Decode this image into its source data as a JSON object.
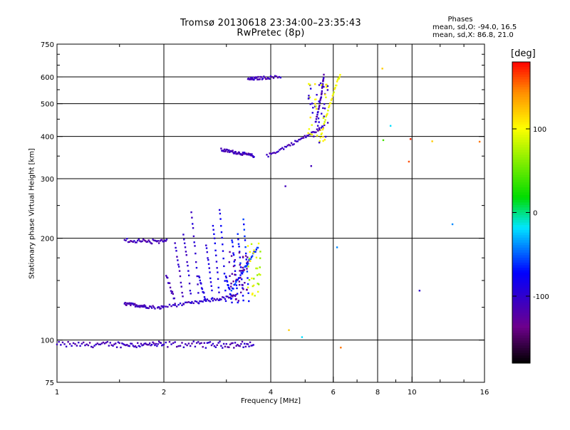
{
  "title": "Tromsø 20130618 23:34:00–23:35:43",
  "subtitle": "RwPretec (8p)",
  "phases": {
    "heading": "Phases",
    "o_line": "mean, sd,O: -94.0, 16.5",
    "x_line": "mean, sd,X: 86.8, 21.0"
  },
  "colorbar": {
    "unit": "deg",
    "tick_labels": [
      "100",
      "0",
      "-100"
    ],
    "ticks": [
      100,
      0,
      -100
    ],
    "range": [
      -180,
      180
    ],
    "colormap": "rainbow (black-purple-blue-cyan-green-yellow-red)"
  },
  "chart_data": {
    "type": "scatter",
    "title": "Tromsø 20130618 23:34:00–23:35:43",
    "subtitle": "RwPretec (8p)",
    "xlabel": "Frequency [MHz]",
    "ylabel": "Stationary phase Virtual Height [km]",
    "x_scale": "log",
    "y_scale": "log",
    "xlim": [
      1,
      16
    ],
    "ylim": [
      75,
      750
    ],
    "x_ticks": [
      1,
      2,
      4,
      6,
      8,
      10,
      16
    ],
    "x_tick_labels": [
      "1",
      "2",
      "4",
      "6",
      "8",
      "10",
      "16"
    ],
    "y_ticks": [
      75,
      100,
      200,
      300,
      400,
      500,
      600,
      750
    ],
    "y_tick_labels": [
      "75",
      "100",
      "200",
      "300",
      "400",
      "500",
      "600",
      "750"
    ],
    "x_gridlines": [
      2,
      4,
      6,
      8,
      10
    ],
    "y_gridlines": [
      100,
      200,
      300,
      400,
      500,
      600
    ],
    "series": [
      {
        "color_by": "phase (deg)",
        "traces": [
          {
            "x": [
              1.0,
              1.1,
              1.2,
              1.3,
              1.4,
              1.5,
              1.6,
              1.7,
              1.8,
              1.9,
              2.0,
              2.2,
              2.4,
              2.6,
              2.8,
              3.0,
              3.2,
              3.4,
              3.6
            ],
            "y": 97,
            "jitter": 1.5,
            "phase": -110
          },
          {
            "x": [
              1.55,
              1.65,
              1.75,
              1.85,
              1.95,
              2.05
            ],
            "y": 196,
            "jitter": 1,
            "phase": -110
          },
          {
            "x": [
              1.92,
              2.0,
              2.2,
              2.4,
              2.6,
              2.8,
              3.0,
              3.2
            ],
            "y_start": 124,
            "y_end": 135,
            "phase": -105
          },
          {
            "x": [
              1.55,
              1.6,
              1.65,
              1.7,
              1.75,
              1.8,
              1.9
            ],
            "y_start": 128,
            "y_end": 125,
            "phase": -110
          },
          {
            "x": [
              3.1,
              3.25,
              3.4,
              3.55,
              3.7
            ],
            "y_start": 140,
            "y_end": 190,
            "phase": -60
          },
          {
            "x": [
              2.9,
              3.0,
              3.1,
              3.2,
              3.3,
              3.4,
              3.5,
              3.6
            ],
            "y_start": 365,
            "y_end": 350,
            "phase": -110
          },
          {
            "x": [
              3.9,
              4.2,
              4.5,
              4.8,
              5.1,
              5.4,
              5.7
            ],
            "y_start": 350,
            "y_end": 430,
            "phase": -110
          },
          {
            "x": [
              5.35,
              5.45,
              5.55,
              5.6,
              5.65
            ],
            "y_start": 440,
            "y_end": 610,
            "phase": -110
          },
          {
            "x": [
              3.45,
              3.55,
              3.65,
              3.8,
              4.0,
              4.3
            ],
            "y_start": 590,
            "y_end": 600,
            "phase": -110
          },
          {
            "x": [
              5.5,
              5.7,
              5.9,
              6.1,
              6.3
            ],
            "y_start": 390,
            "y_end": 620,
            "phase": 100
          }
        ]
      }
    ],
    "scattered_points": [
      {
        "x": 4.4,
        "y": 285,
        "phase": -110
      },
      {
        "x": 5.2,
        "y": 327,
        "phase": -110
      },
      {
        "x": 6.3,
        "y": 95,
        "phase": 150
      },
      {
        "x": 4.5,
        "y": 107,
        "phase": 120
      },
      {
        "x": 4.9,
        "y": 102,
        "phase": -20
      },
      {
        "x": 8.3,
        "y": 390,
        "phase": 40
      },
      {
        "x": 8.7,
        "y": 430,
        "phase": -20
      },
      {
        "x": 9.9,
        "y": 393,
        "phase": 170
      },
      {
        "x": 9.8,
        "y": 337,
        "phase": 160
      },
      {
        "x": 11.4,
        "y": 387,
        "phase": 120
      },
      {
        "x": 13.0,
        "y": 220,
        "phase": -40
      },
      {
        "x": 10.5,
        "y": 140,
        "phase": -100
      },
      {
        "x": 15.5,
        "y": 386,
        "phase": 150
      },
      {
        "x": 6.15,
        "y": 188,
        "phase": -40
      },
      {
        "x": 8.25,
        "y": 635,
        "phase": 120
      }
    ],
    "grid": true,
    "legend": "none"
  }
}
